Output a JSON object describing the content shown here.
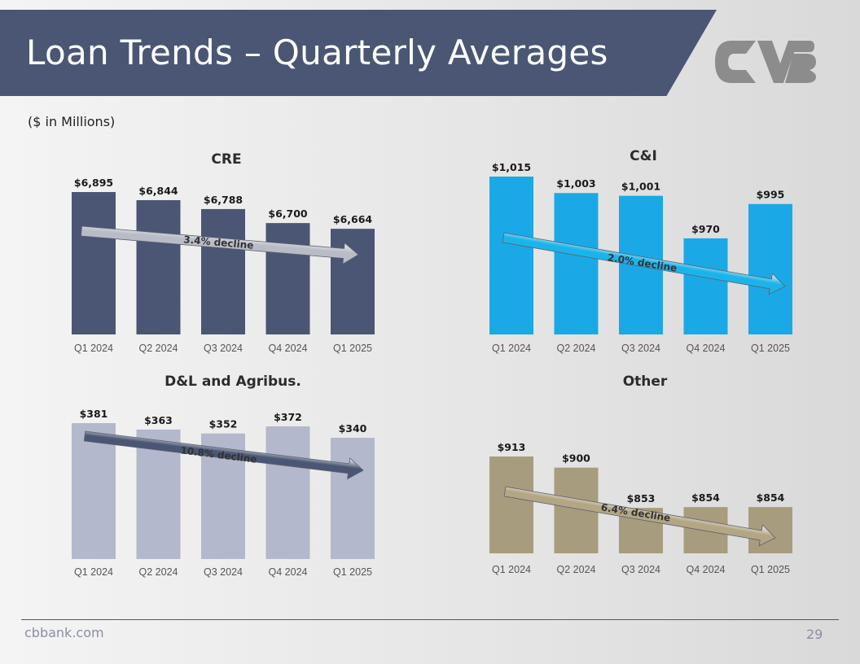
{
  "header": {
    "title": "Loan Trends – Quarterly Averages",
    "subtitle": "($ in Millions)",
    "logo_icon": "cvb-logo-icon"
  },
  "footer": {
    "site": "cbbank.com",
    "page_number": "29"
  },
  "colors": {
    "title_band": "#4a5674",
    "cre": "#4a5674",
    "ci": "#1aa9e6",
    "dl": "#b4b8cc",
    "other": "#a89c7e"
  },
  "chart_data": [
    {
      "id": "cre",
      "type": "bar",
      "title": "CRE",
      "categories": [
        "Q1 2024",
        "Q2 2024",
        "Q3 2024",
        "Q4 2024",
        "Q1 2025"
      ],
      "values": [
        6895,
        6844,
        6788,
        6700,
        6664
      ],
      "value_labels": [
        "$6,895",
        "$6,844",
        "$6,788",
        "$6,700",
        "$6,664"
      ],
      "annotation": "3.4% decline",
      "color": "#4a5674",
      "arrow_color": "#b9bcc6",
      "ylim": [
        6000,
        7100
      ]
    },
    {
      "id": "ci",
      "type": "bar",
      "title": "C&I",
      "categories": [
        "Q1 2024",
        "Q2 2024",
        "Q3 2024",
        "Q4 2024",
        "Q1 2025"
      ],
      "values": [
        1015,
        1003,
        1001,
        970,
        995
      ],
      "value_labels": [
        "$1,015",
        "$1,003",
        "$1,001",
        "$970",
        "$995"
      ],
      "annotation": "2.0% decline",
      "color": "#1aa9e6",
      "arrow_color": "#1bb4ea",
      "ylim": [
        900,
        1020
      ]
    },
    {
      "id": "dl",
      "type": "bar",
      "title": "D&L and Agribus.",
      "categories": [
        "Q1 2024",
        "Q2 2024",
        "Q3 2024",
        "Q4 2024",
        "Q1 2025"
      ],
      "values": [
        381,
        363,
        352,
        372,
        340
      ],
      "value_labels": [
        "$381",
        "$363",
        "$352",
        "$372",
        "$340"
      ],
      "annotation": "10.8% decline",
      "color": "#b4b8cc",
      "arrow_color": "#4a5674",
      "ylim": [
        0,
        390
      ]
    },
    {
      "id": "other",
      "type": "bar",
      "title": "Other",
      "categories": [
        "Q1 2024",
        "Q2 2024",
        "Q3 2024",
        "Q4 2024",
        "Q1 2025"
      ],
      "values": [
        913,
        900,
        853,
        854,
        854
      ],
      "value_labels": [
        "$913",
        "$900",
        "$853",
        "$854",
        "$854"
      ],
      "annotation": "6.4% decline",
      "color": "#a89c7e",
      "arrow_color": "#b3a685",
      "ylim": [
        800,
        940
      ]
    }
  ]
}
